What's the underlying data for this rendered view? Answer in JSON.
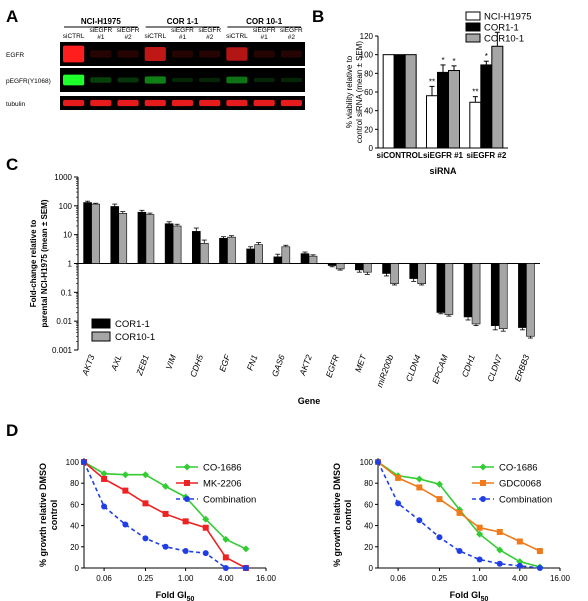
{
  "panels": {
    "a": "A",
    "b": "B",
    "c": "C",
    "d": "D"
  },
  "blot": {
    "cell_lines": [
      "NCI-H1975",
      "COR 1-1",
      "COR 10-1"
    ],
    "lane_top": [
      "siEGFR",
      "siEGFR",
      "siEGFR",
      "siEGFR",
      "siEGFR",
      "siEGFR"
    ],
    "lanes": [
      "siCTRL",
      "#1",
      "#2",
      "siCTRL",
      "#1",
      "#2",
      "siCTRL",
      "#1",
      "#2"
    ],
    "rows": [
      "EGFR",
      "pEGFR(Y1068)",
      "tubulin"
    ],
    "colors": {
      "red": "#ff1e1e",
      "green": "#1eff2c",
      "background": "#000000"
    }
  },
  "chart_data": [
    {
      "type": "bar",
      "panel": "B",
      "categories": [
        "siCONTROL",
        "siEGFR #1",
        "siEGFR #2"
      ],
      "series": [
        {
          "name": "NCI-H1975",
          "values": [
            100,
            56,
            49
          ],
          "errors": [
            0,
            10,
            6
          ],
          "color": "#ffffff"
        },
        {
          "name": "COR1-1",
          "values": [
            100,
            81,
            89
          ],
          "errors": [
            0,
            8,
            4
          ],
          "color": "#000000"
        },
        {
          "name": "COR10-1",
          "values": [
            100,
            83,
            109
          ],
          "errors": [
            0,
            5,
            15
          ],
          "color": "#a6a6a6"
        }
      ],
      "significance": [
        [
          "",
          "**",
          "**"
        ],
        [
          "",
          "*",
          "*"
        ],
        [
          "",
          "*",
          ""
        ]
      ],
      "xlabel": "siRNA",
      "ylabel": "% viability relative to control siRNA (mean ± SEM)",
      "ylim": [
        0,
        120
      ],
      "yticks": [
        "0",
        "20",
        "40",
        "60",
        "80",
        "100",
        "120"
      ],
      "legend": "top-right"
    },
    {
      "type": "bar",
      "panel": "C",
      "scale": "log",
      "categories": [
        "AKT3",
        "AXL",
        "ZEB1",
        "VIM",
        "CDH5",
        "EGF",
        "FN1",
        "GAS6",
        "AKT2",
        "EGFR",
        "MET",
        "miR200b",
        "CLDN4",
        "EPCAM",
        "CDH1",
        "CLDN7",
        "ERBB3"
      ],
      "series": [
        {
          "name": "COR1-1",
          "values": [
            130,
            95,
            60,
            24,
            13,
            7.5,
            3.2,
            1.7,
            2.2,
            0.85,
            0.6,
            0.45,
            0.3,
            0.02,
            0.014,
            0.007,
            0.006
          ],
          "errors": [
            15,
            20,
            10,
            4,
            4,
            1,
            0.6,
            0.4,
            0.3,
            0.08,
            0.1,
            0.08,
            0.06,
            0.002,
            0.003,
            0.002,
            0.001
          ],
          "color": "#000000"
        },
        {
          "name": "COR10-1",
          "values": [
            115,
            55,
            50,
            20,
            5,
            8.2,
            4.5,
            3.8,
            1.8,
            0.65,
            0.5,
            0.2,
            0.2,
            0.017,
            0.008,
            0.0055,
            0.003
          ],
          "errors": [
            8,
            8,
            6,
            3,
            1.5,
            1,
            0.8,
            0.5,
            0.2,
            0.06,
            0.08,
            0.02,
            0.02,
            0.002,
            0.001,
            0.001,
            0.0004
          ],
          "color": "#a6a6a6"
        }
      ],
      "xlabel": "Gene",
      "ylabel": "Fold-change relative to parental NCI-H1975 (mean ± SEM)",
      "ylim": [
        0.001,
        1000
      ],
      "yticks": [
        "0.001",
        "0.01",
        "0.1",
        "1",
        "10",
        "100",
        "1000"
      ],
      "legend": "bottom-left"
    },
    {
      "type": "line",
      "panel": "D-left",
      "x": [
        0.03,
        0.06,
        0.125,
        0.25,
        0.5,
        1.0,
        2.0,
        4.0,
        8.0
      ],
      "series": [
        {
          "name": "CO-1686",
          "values": [
            100,
            89,
            88,
            88,
            77,
            67,
            46,
            27,
            18
          ],
          "color": "#33cc33"
        },
        {
          "name": "MK-2206",
          "values": [
            100,
            84,
            73,
            61,
            51,
            44,
            38,
            10,
            0
          ],
          "color": "#ee2222"
        },
        {
          "name": "Combination",
          "values": [
            100,
            58,
            41,
            28,
            20,
            16,
            14,
            0,
            0
          ],
          "color": "#1f3ee6"
        }
      ],
      "xlabel": "Fold GI50",
      "ylabel": "% growth relative DMSO control",
      "xticks": [
        "0.06",
        "0.25",
        "1.00",
        "4.00",
        "16.00"
      ],
      "yticks": [
        "0",
        "20",
        "40",
        "60",
        "80",
        "100"
      ],
      "ylim": [
        0,
        100
      ],
      "legend": "top-right"
    },
    {
      "type": "line",
      "panel": "D-right",
      "x": [
        0.03,
        0.06,
        0.125,
        0.25,
        0.5,
        1.0,
        2.0,
        4.0,
        8.0
      ],
      "series": [
        {
          "name": "CO-1686",
          "values": [
            100,
            87,
            84,
            79,
            55,
            32,
            17,
            6,
            1
          ],
          "color": "#33cc33"
        },
        {
          "name": "GDC0068",
          "values": [
            100,
            85,
            76,
            65,
            52,
            38,
            34,
            25,
            16
          ],
          "color": "#f07a1a"
        },
        {
          "name": "Combination",
          "values": [
            100,
            61,
            45,
            29,
            16,
            8,
            4,
            2,
            0
          ],
          "color": "#1f3ee6"
        }
      ],
      "xlabel": "Fold GI50",
      "ylabel": "% growth relative DMSO control",
      "xticks": [
        "0.06",
        "0.25",
        "1.00",
        "4.00",
        "16.00"
      ],
      "yticks": [
        "0",
        "20",
        "40",
        "60",
        "80",
        "100"
      ],
      "ylim": [
        0,
        100
      ],
      "legend": "top-right"
    }
  ]
}
